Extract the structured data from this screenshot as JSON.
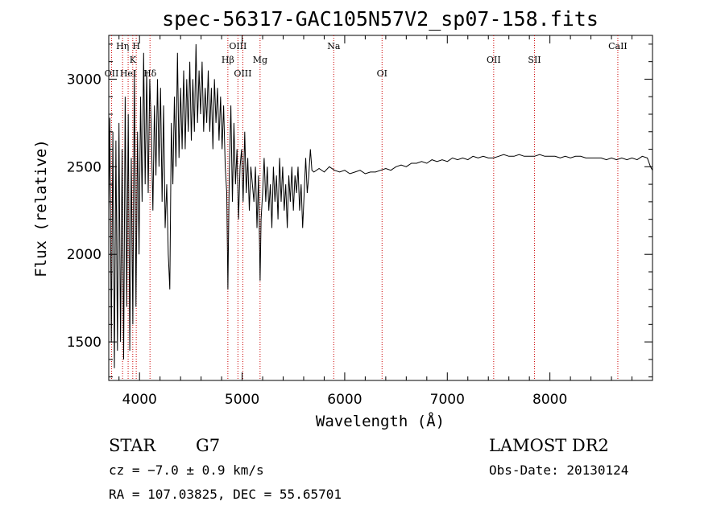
{
  "chart_data": {
    "type": "line",
    "title": "spec-56317-GAC105N57V2_sp07-158.fits",
    "xlabel": "Wavelength (Å)",
    "ylabel": "Flux (relative)",
    "xlim": [
      3700,
      9000
    ],
    "ylim": [
      1280,
      3250
    ],
    "xticks": [
      4000,
      5000,
      6000,
      7000,
      8000
    ],
    "yticks": [
      1500,
      2000,
      2500,
      3000
    ],
    "x_minor_step": 200,
    "y_minor_step": 100,
    "grid": false,
    "series": [
      {
        "color": "#000000",
        "points": [
          [
            3700,
            2250
          ],
          [
            3710,
            2780
          ],
          [
            3725,
            1500
          ],
          [
            3740,
            2700
          ],
          [
            3755,
            1350
          ],
          [
            3770,
            2650
          ],
          [
            3785,
            1450
          ],
          [
            3800,
            2750
          ],
          [
            3815,
            1500
          ],
          [
            3830,
            2600
          ],
          [
            3845,
            1400
          ],
          [
            3860,
            2900
          ],
          [
            3875,
            1700
          ],
          [
            3890,
            2800
          ],
          [
            3905,
            1450
          ],
          [
            3920,
            2550
          ],
          [
            3935,
            1600
          ],
          [
            3950,
            3050
          ],
          [
            3965,
            1700
          ],
          [
            3980,
            2700
          ],
          [
            3995,
            2000
          ],
          [
            4010,
            2900
          ],
          [
            4025,
            2300
          ],
          [
            4040,
            3150
          ],
          [
            4055,
            2400
          ],
          [
            4070,
            3050
          ],
          [
            4085,
            2350
          ],
          [
            4100,
            3000
          ],
          [
            4115,
            2700
          ],
          [
            4130,
            2250
          ],
          [
            4145,
            2850
          ],
          [
            4160,
            2450
          ],
          [
            4175,
            3000
          ],
          [
            4190,
            2500
          ],
          [
            4205,
            2950
          ],
          [
            4220,
            2300
          ],
          [
            4235,
            2850
          ],
          [
            4250,
            2150
          ],
          [
            4265,
            2400
          ],
          [
            4280,
            2000
          ],
          [
            4295,
            1800
          ],
          [
            4310,
            2750
          ],
          [
            4325,
            2400
          ],
          [
            4340,
            2900
          ],
          [
            4355,
            2500
          ],
          [
            4370,
            3150
          ],
          [
            4385,
            2550
          ],
          [
            4400,
            2950
          ],
          [
            4415,
            2600
          ],
          [
            4430,
            3050
          ],
          [
            4445,
            2600
          ],
          [
            4460,
            3000
          ],
          [
            4475,
            2700
          ],
          [
            4490,
            3100
          ],
          [
            4505,
            2650
          ],
          [
            4520,
            3000
          ],
          [
            4535,
            2700
          ],
          [
            4550,
            3200
          ],
          [
            4565,
            2750
          ],
          [
            4580,
            3050
          ],
          [
            4595,
            2800
          ],
          [
            4610,
            3100
          ],
          [
            4625,
            2700
          ],
          [
            4640,
            2950
          ],
          [
            4655,
            2750
          ],
          [
            4670,
            3050
          ],
          [
            4685,
            2700
          ],
          [
            4700,
            2950
          ],
          [
            4715,
            2600
          ],
          [
            4730,
            3000
          ],
          [
            4745,
            2750
          ],
          [
            4760,
            2950
          ],
          [
            4775,
            2650
          ],
          [
            4790,
            2900
          ],
          [
            4805,
            2600
          ],
          [
            4820,
            2850
          ],
          [
            4835,
            2500
          ],
          [
            4850,
            2350
          ],
          [
            4861,
            1800
          ],
          [
            4875,
            2450
          ],
          [
            4890,
            2850
          ],
          [
            4905,
            2300
          ],
          [
            4920,
            2750
          ],
          [
            4935,
            2400
          ],
          [
            4950,
            2600
          ],
          [
            4965,
            2200
          ],
          [
            4980,
            2500
          ],
          [
            4995,
            2600
          ],
          [
            5010,
            2300
          ],
          [
            5025,
            2700
          ],
          [
            5040,
            2350
          ],
          [
            5055,
            2550
          ],
          [
            5070,
            2250
          ],
          [
            5085,
            2500
          ],
          [
            5100,
            2400
          ],
          [
            5115,
            2300
          ],
          [
            5130,
            2500
          ],
          [
            5145,
            2150
          ],
          [
            5160,
            2450
          ],
          [
            5175,
            1850
          ],
          [
            5185,
            2200
          ],
          [
            5200,
            2350
          ],
          [
            5215,
            2550
          ],
          [
            5230,
            2300
          ],
          [
            5245,
            2500
          ],
          [
            5260,
            2250
          ],
          [
            5275,
            2400
          ],
          [
            5290,
            2150
          ],
          [
            5305,
            2500
          ],
          [
            5320,
            2300
          ],
          [
            5335,
            2450
          ],
          [
            5350,
            2200
          ],
          [
            5365,
            2550
          ],
          [
            5380,
            2300
          ],
          [
            5395,
            2500
          ],
          [
            5410,
            2250
          ],
          [
            5425,
            2400
          ],
          [
            5440,
            2150
          ],
          [
            5455,
            2450
          ],
          [
            5470,
            2300
          ],
          [
            5485,
            2500
          ],
          [
            5500,
            2250
          ],
          [
            5515,
            2450
          ],
          [
            5530,
            2350
          ],
          [
            5545,
            2500
          ],
          [
            5560,
            2250
          ],
          [
            5575,
            2400
          ],
          [
            5590,
            2150
          ],
          [
            5605,
            2350
          ],
          [
            5620,
            2550
          ],
          [
            5635,
            2350
          ],
          [
            5650,
            2450
          ],
          [
            5665,
            2600
          ],
          [
            5680,
            2480
          ],
          [
            5700,
            2470
          ],
          [
            5750,
            2490
          ],
          [
            5800,
            2470
          ],
          [
            5850,
            2500
          ],
          [
            5900,
            2480
          ],
          [
            5950,
            2470
          ],
          [
            6000,
            2480
          ],
          [
            6050,
            2460
          ],
          [
            6100,
            2470
          ],
          [
            6150,
            2480
          ],
          [
            6200,
            2460
          ],
          [
            6250,
            2470
          ],
          [
            6300,
            2470
          ],
          [
            6350,
            2480
          ],
          [
            6400,
            2490
          ],
          [
            6450,
            2480
          ],
          [
            6500,
            2500
          ],
          [
            6550,
            2510
          ],
          [
            6600,
            2500
          ],
          [
            6650,
            2520
          ],
          [
            6700,
            2520
          ],
          [
            6750,
            2530
          ],
          [
            6800,
            2520
          ],
          [
            6850,
            2540
          ],
          [
            6900,
            2530
          ],
          [
            6950,
            2540
          ],
          [
            7000,
            2530
          ],
          [
            7050,
            2550
          ],
          [
            7100,
            2540
          ],
          [
            7150,
            2550
          ],
          [
            7200,
            2540
          ],
          [
            7250,
            2560
          ],
          [
            7300,
            2550
          ],
          [
            7350,
            2560
          ],
          [
            7400,
            2550
          ],
          [
            7450,
            2550
          ],
          [
            7500,
            2560
          ],
          [
            7550,
            2570
          ],
          [
            7600,
            2560
          ],
          [
            7650,
            2560
          ],
          [
            7700,
            2570
          ],
          [
            7750,
            2560
          ],
          [
            7800,
            2560
          ],
          [
            7850,
            2560
          ],
          [
            7900,
            2570
          ],
          [
            7950,
            2560
          ],
          [
            8000,
            2560
          ],
          [
            8050,
            2560
          ],
          [
            8100,
            2550
          ],
          [
            8150,
            2560
          ],
          [
            8200,
            2550
          ],
          [
            8250,
            2560
          ],
          [
            8300,
            2560
          ],
          [
            8350,
            2550
          ],
          [
            8400,
            2550
          ],
          [
            8450,
            2550
          ],
          [
            8500,
            2550
          ],
          [
            8550,
            2540
          ],
          [
            8600,
            2550
          ],
          [
            8650,
            2540
          ],
          [
            8700,
            2550
          ],
          [
            8750,
            2540
          ],
          [
            8800,
            2550
          ],
          [
            8850,
            2540
          ],
          [
            8900,
            2560
          ],
          [
            8950,
            2550
          ],
          [
            8980,
            2500
          ],
          [
            9000,
            2480
          ]
        ]
      }
    ],
    "lines": [
      {
        "label": "OII",
        "x": 3727,
        "tier": 3
      },
      {
        "label": "Hη",
        "x": 3835,
        "tier": 0
      },
      {
        "label": "HeI",
        "x": 3889,
        "tier": 3
      },
      {
        "label": "K",
        "x": 3934,
        "tier": 1
      },
      {
        "label": "H",
        "x": 3968,
        "tier": 0
      },
      {
        "label": "Hδ",
        "x": 4102,
        "tier": 3
      },
      {
        "label": "Hβ",
        "x": 4861,
        "tier": 2
      },
      {
        "label": "OIII",
        "x": 4959,
        "tier": 0
      },
      {
        "label": "OIII",
        "x": 5007,
        "tier": 3
      },
      {
        "label": "Mg",
        "x": 5175,
        "tier": 2
      },
      {
        "label": "Na",
        "x": 5893,
        "tier": 0
      },
      {
        "label": "OI",
        "x": 6364,
        "tier": 3
      },
      {
        "label": "OII",
        "x": 7452,
        "tier": 2
      },
      {
        "label": "SII",
        "x": 7850,
        "tier": 2
      },
      {
        "label": "CaII",
        "x": 8662,
        "tier": 0
      }
    ],
    "line_marker_color": "#cc0000"
  },
  "info": {
    "class": "STAR",
    "subclass": "G7",
    "survey": "LAMOST DR2",
    "cz": "cz = −7.0 ± 0.9 km/s",
    "obs_date": "Obs-Date: 20130124",
    "coords": "RA = 107.03825, DEC =  55.65701"
  }
}
